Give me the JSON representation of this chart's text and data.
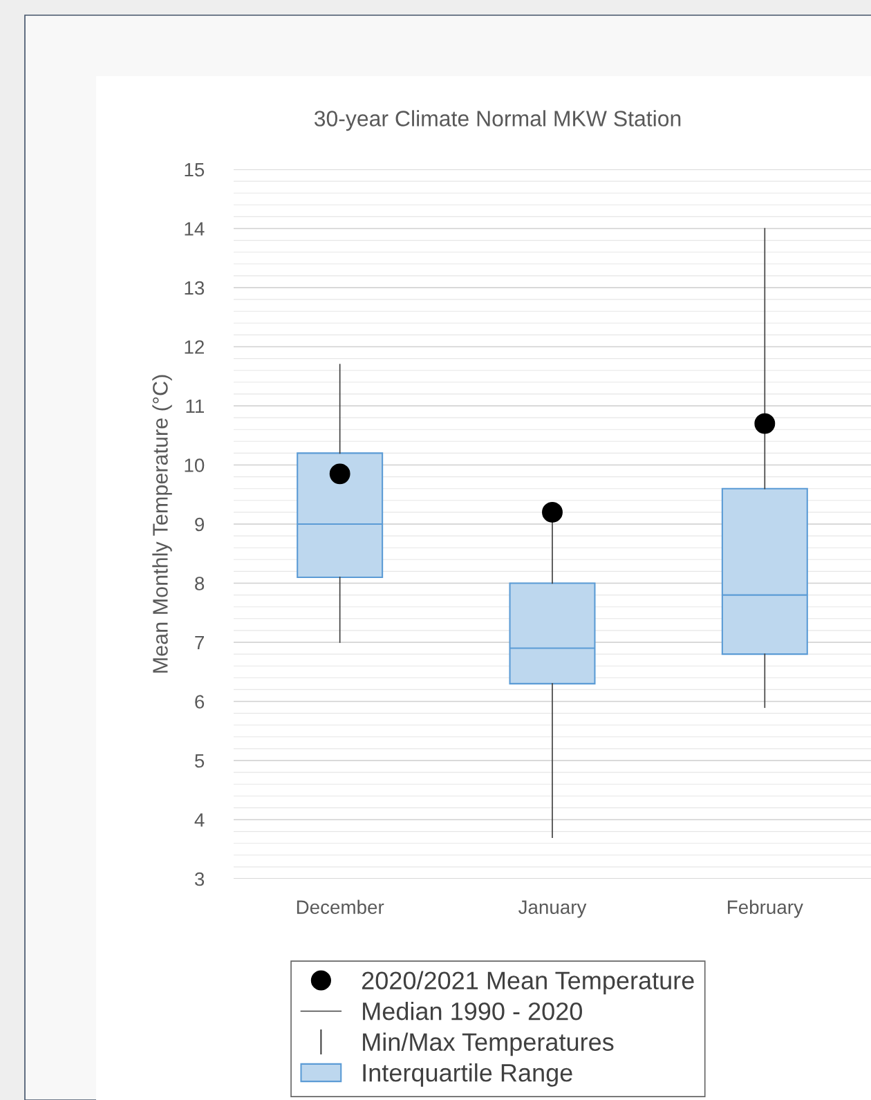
{
  "chart_data": {
    "type": "box",
    "title": "30-year Climate Normal MKW Station",
    "ylabel": "Mean Monthly Temperature (°C)",
    "categories": [
      "December",
      "January",
      "February"
    ],
    "ylim": [
      3,
      15
    ],
    "yticks": [
      3,
      4,
      5,
      6,
      7,
      8,
      9,
      10,
      11,
      12,
      13,
      14,
      15
    ],
    "grid": "y",
    "legend": "bottom",
    "series": [
      {
        "name": "Interquartile Range",
        "color": "#bdd7ee",
        "boxes": [
          {
            "low": 7.0,
            "q1": 8.1,
            "median": 9.0,
            "q3": 10.2,
            "high": 11.7
          },
          {
            "low": 3.7,
            "q1": 6.3,
            "median": 6.9,
            "q3": 8.0,
            "high": 9.2
          },
          {
            "low": 5.9,
            "q1": 6.8,
            "median": 7.8,
            "q3": 9.6,
            "high": 14.0
          }
        ]
      },
      {
        "name": "2020/2021 Mean Temperature",
        "type": "scatter",
        "color": "#000000",
        "marker": "circle",
        "x": [
          "December",
          "January",
          "February"
        ],
        "values": [
          9.85,
          9.2,
          10.7
        ]
      }
    ],
    "annotations": [
      "Median 1990 - 2020",
      "Min/Max Temperatures"
    ]
  }
}
